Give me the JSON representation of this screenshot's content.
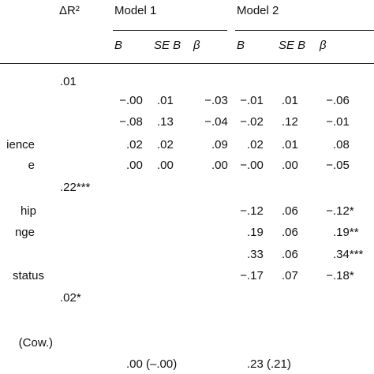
{
  "header": {
    "delta_r2": "ΔR²",
    "model_1": "Model 1",
    "model_2": "Model 2",
    "subheaders": [
      "B",
      "SE B",
      "β",
      "B",
      "SE B",
      "β"
    ]
  },
  "rows": [
    {
      "label": null,
      "delta_r2": ".01",
      "cells": [
        null,
        null,
        null,
        null,
        null,
        null
      ]
    },
    {
      "label": null,
      "delta_r2": null,
      "cells": [
        "−.00",
        ".01",
        "−.03",
        "−.01",
        ".01",
        "−.06"
      ]
    },
    {
      "label": null,
      "delta_r2": null,
      "cells": [
        "−.08",
        ".13",
        "−.04",
        "−.02",
        ".12",
        "−.01"
      ]
    },
    {
      "label": "ience",
      "delta_r2": null,
      "cells": [
        ".02",
        ".02",
        ".09",
        ".02",
        ".01",
        ".08"
      ]
    },
    {
      "label": "e",
      "delta_r2": null,
      "cells": [
        ".00",
        ".00",
        ".00",
        "−.00",
        ".00",
        "−.05"
      ]
    },
    {
      "label": null,
      "delta_r2": ".22***",
      "cells": [
        null,
        null,
        null,
        null,
        null,
        null
      ]
    },
    {
      "label": "hip",
      "delta_r2": null,
      "cells": [
        null,
        null,
        null,
        "−.12",
        ".06",
        "−.12*"
      ]
    },
    {
      "label": "nge",
      "delta_r2": null,
      "cells": [
        null,
        null,
        null,
        ".19",
        ".06",
        ".19**"
      ]
    },
    {
      "label": null,
      "delta_r2": null,
      "cells": [
        null,
        null,
        null,
        ".33",
        ".06",
        ".34***"
      ]
    },
    {
      "label": "status",
      "delta_r2": null,
      "cells": [
        null,
        null,
        null,
        "−.17",
        ".07",
        "−.18*"
      ]
    },
    {
      "label": null,
      "delta_r2": ".02*",
      "cells": [
        null,
        null,
        null,
        null,
        null,
        null
      ]
    },
    {
      "label": "(Cow.)",
      "delta_r2": null,
      "cells": [
        null,
        null,
        null,
        null,
        null,
        null
      ]
    },
    {
      "label": null,
      "delta_r2": null,
      "cells": [
        ".00 (–.00)",
        null,
        null,
        ".23 (.21)",
        null,
        null
      ]
    }
  ]
}
